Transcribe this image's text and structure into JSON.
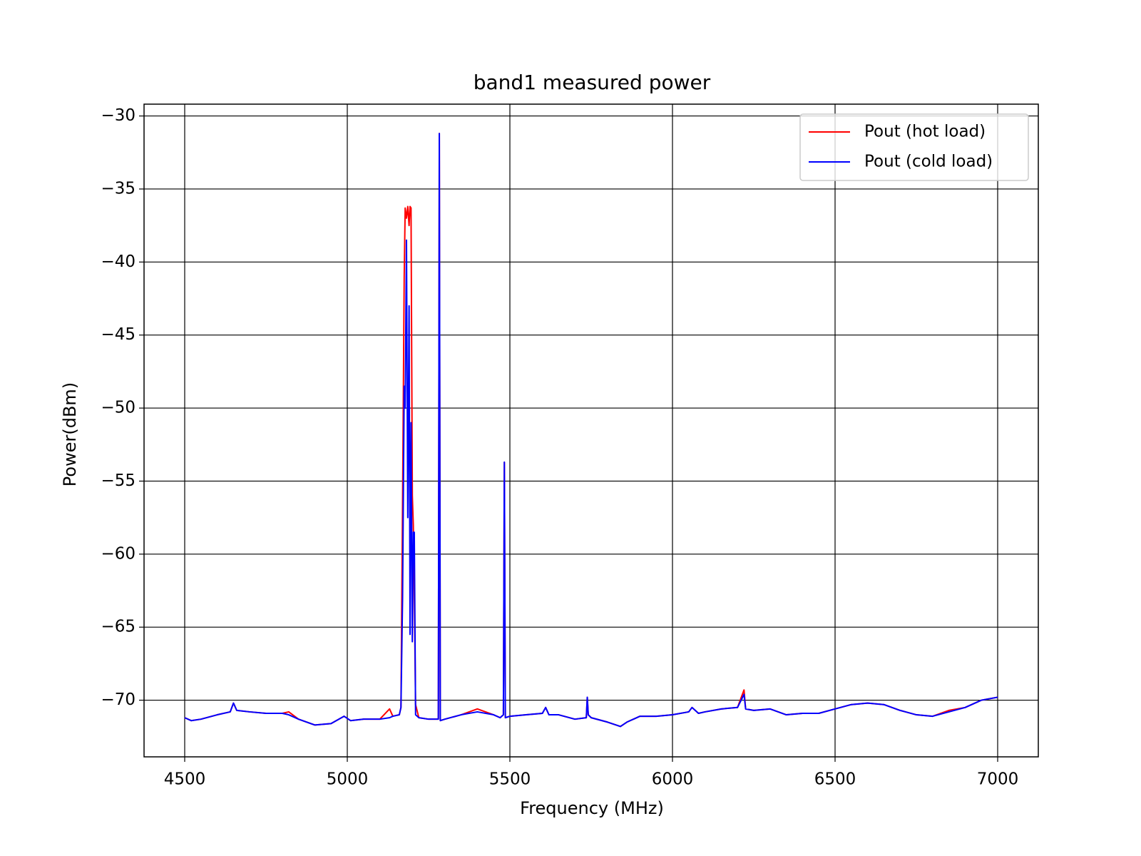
{
  "chart_data": {
    "type": "line",
    "title": "band1 measured power",
    "x_label": "Frequency (MHz)",
    "y_label": "Power(dBm)",
    "x": [
      4500,
      4520,
      4550,
      4600,
      4640,
      4650,
      4660,
      4700,
      4750,
      4800,
      4820,
      4850,
      4900,
      4950,
      4990,
      5010,
      5050,
      5100,
      5130,
      5140,
      5160,
      5165,
      5170,
      5175,
      5178,
      5182,
      5186,
      5190,
      5193,
      5196,
      5200,
      5203,
      5206,
      5210,
      5220,
      5250,
      5280,
      5283,
      5286,
      5300,
      5350,
      5400,
      5450,
      5470,
      5480,
      5483,
      5486,
      5500,
      5550,
      5600,
      5610,
      5620,
      5650,
      5700,
      5735,
      5738,
      5741,
      5750,
      5800,
      5840,
      5860,
      5900,
      5950,
      6000,
      6050,
      6060,
      6080,
      6100,
      6150,
      6200,
      6220,
      6225,
      6250,
      6300,
      6350,
      6400,
      6450,
      6500,
      6550,
      6600,
      6650,
      6700,
      6750,
      6800,
      6850,
      6900,
      6950,
      7000
    ],
    "series": [
      {
        "name": "Pout (hot load)",
        "color": "#ff0000",
        "values": [
          -71.2,
          -71.4,
          -71.3,
          -71.0,
          -70.8,
          -70.2,
          -70.7,
          -70.8,
          -70.9,
          -70.9,
          -70.8,
          -71.3,
          -71.7,
          -71.6,
          -71.1,
          -71.4,
          -71.3,
          -71.3,
          -70.6,
          -71.1,
          -71.0,
          -70.5,
          -56.5,
          -41.0,
          -36.3,
          -37.0,
          -36.2,
          -37.5,
          -36.2,
          -36.3,
          -56.0,
          -58.0,
          -62.5,
          -70.3,
          -71.2,
          -71.3,
          -71.3,
          -31.2,
          -71.4,
          -71.3,
          -71.0,
          -70.6,
          -71.0,
          -71.2,
          -71.0,
          -53.7,
          -71.2,
          -71.1,
          -71.0,
          -70.9,
          -70.5,
          -71.0,
          -71.0,
          -71.3,
          -71.2,
          -69.8,
          -71.0,
          -71.2,
          -71.5,
          -71.8,
          -71.5,
          -71.1,
          -71.1,
          -71.0,
          -70.8,
          -70.5,
          -70.9,
          -70.8,
          -70.6,
          -70.5,
          -69.3,
          -70.6,
          -70.7,
          -70.6,
          -71.0,
          -70.9,
          -70.9,
          -70.6,
          -70.3,
          -70.2,
          -70.3,
          -70.7,
          -71.0,
          -71.1,
          -70.7,
          -70.5,
          -70.0,
          -69.8
        ]
      },
      {
        "name": "Pout (cold load)",
        "color": "#0000ff",
        "values": [
          -71.2,
          -71.4,
          -71.3,
          -71.0,
          -70.8,
          -70.2,
          -70.7,
          -70.8,
          -70.9,
          -70.9,
          -71.0,
          -71.3,
          -71.7,
          -71.6,
          -71.1,
          -71.4,
          -71.3,
          -71.3,
          -71.2,
          -71.1,
          -71.0,
          -70.5,
          -63.0,
          -48.5,
          -50.0,
          -38.5,
          -57.5,
          -43.0,
          -65.5,
          -51.0,
          -66.0,
          -58.5,
          -58.5,
          -71.0,
          -71.2,
          -71.3,
          -71.3,
          -31.2,
          -71.4,
          -71.3,
          -71.0,
          -70.8,
          -71.0,
          -71.2,
          -71.0,
          -53.7,
          -71.2,
          -71.1,
          -71.0,
          -70.9,
          -70.5,
          -71.0,
          -71.0,
          -71.3,
          -71.2,
          -69.8,
          -71.0,
          -71.2,
          -71.5,
          -71.8,
          -71.5,
          -71.1,
          -71.1,
          -71.0,
          -70.8,
          -70.5,
          -70.9,
          -70.8,
          -70.6,
          -70.5,
          -69.6,
          -70.6,
          -70.7,
          -70.6,
          -71.0,
          -70.9,
          -70.9,
          -70.6,
          -70.3,
          -70.2,
          -70.3,
          -70.7,
          -71.0,
          -71.1,
          -70.8,
          -70.5,
          -70.0,
          -69.8
        ]
      }
    ],
    "xlim": [
      4375,
      7125
    ],
    "ylim": [
      -73.88,
      -29.19
    ],
    "xticks": [
      4500,
      5000,
      5500,
      6000,
      6500,
      7000
    ],
    "yticks": [
      {
        "value": -70,
        "label": "−70"
      },
      {
        "value": -65,
        "label": "−65"
      },
      {
        "value": -60,
        "label": "−60"
      },
      {
        "value": -55,
        "label": "−55"
      },
      {
        "value": -50,
        "label": "−50"
      },
      {
        "value": -45,
        "label": "−45"
      },
      {
        "value": -40,
        "label": "−40"
      },
      {
        "value": -35,
        "label": "−35"
      },
      {
        "value": -30,
        "label": "−30"
      }
    ],
    "grid": true,
    "legend": "upper right"
  }
}
